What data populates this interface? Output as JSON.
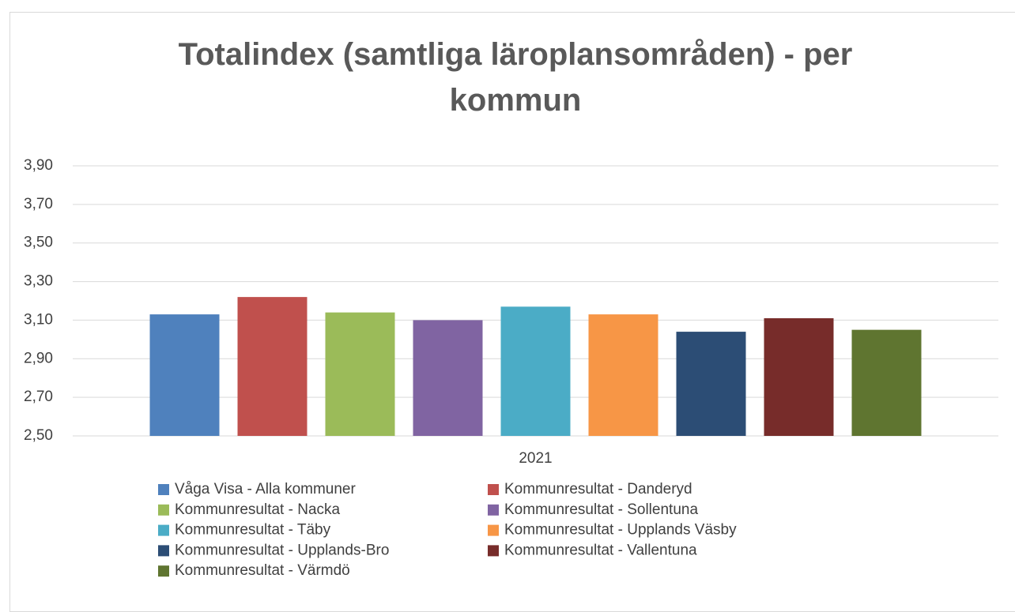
{
  "chart_data": {
    "type": "bar",
    "title": "Totalindex (samtliga läroplansområden) - per kommun",
    "categories": [
      "2021"
    ],
    "series": [
      {
        "name": "Våga Visa - Alla kommuner",
        "color": "#4f81bd",
        "values": [
          3.13
        ]
      },
      {
        "name": "Kommunresultat - Danderyd",
        "color": "#c0504d",
        "values": [
          3.22
        ]
      },
      {
        "name": "Kommunresultat - Nacka",
        "color": "#9bbb59",
        "values": [
          3.14
        ]
      },
      {
        "name": "Kommunresultat - Sollentuna",
        "color": "#8064a2",
        "values": [
          3.1
        ]
      },
      {
        "name": "Kommunresultat - Täby",
        "color": "#4bacc6",
        "values": [
          3.17
        ]
      },
      {
        "name": "Kommunresultat - Upplands Väsby",
        "color": "#f79646",
        "values": [
          3.13
        ]
      },
      {
        "name": "Kommunresultat - Upplands-Bro",
        "color": "#2c4d75",
        "values": [
          3.04
        ]
      },
      {
        "name": "Kommunresultat - Vallentuna",
        "color": "#772c2a",
        "values": [
          3.11
        ]
      },
      {
        "name": "Kommunresultat - Värmdö",
        "color": "#5f7530",
        "values": [
          3.05
        ]
      }
    ],
    "ylim": [
      2.5,
      3.9
    ],
    "yticks": [
      {
        "value": 2.5,
        "label": "2,50"
      },
      {
        "value": 2.7,
        "label": "2,70"
      },
      {
        "value": 2.9,
        "label": "2,90"
      },
      {
        "value": 3.1,
        "label": "3,10"
      },
      {
        "value": 3.3,
        "label": "3,30"
      },
      {
        "value": 3.5,
        "label": "3,50"
      },
      {
        "value": 3.7,
        "label": "3,70"
      },
      {
        "value": 3.9,
        "label": "3,90"
      }
    ],
    "grid": true,
    "legend": "bottom"
  }
}
